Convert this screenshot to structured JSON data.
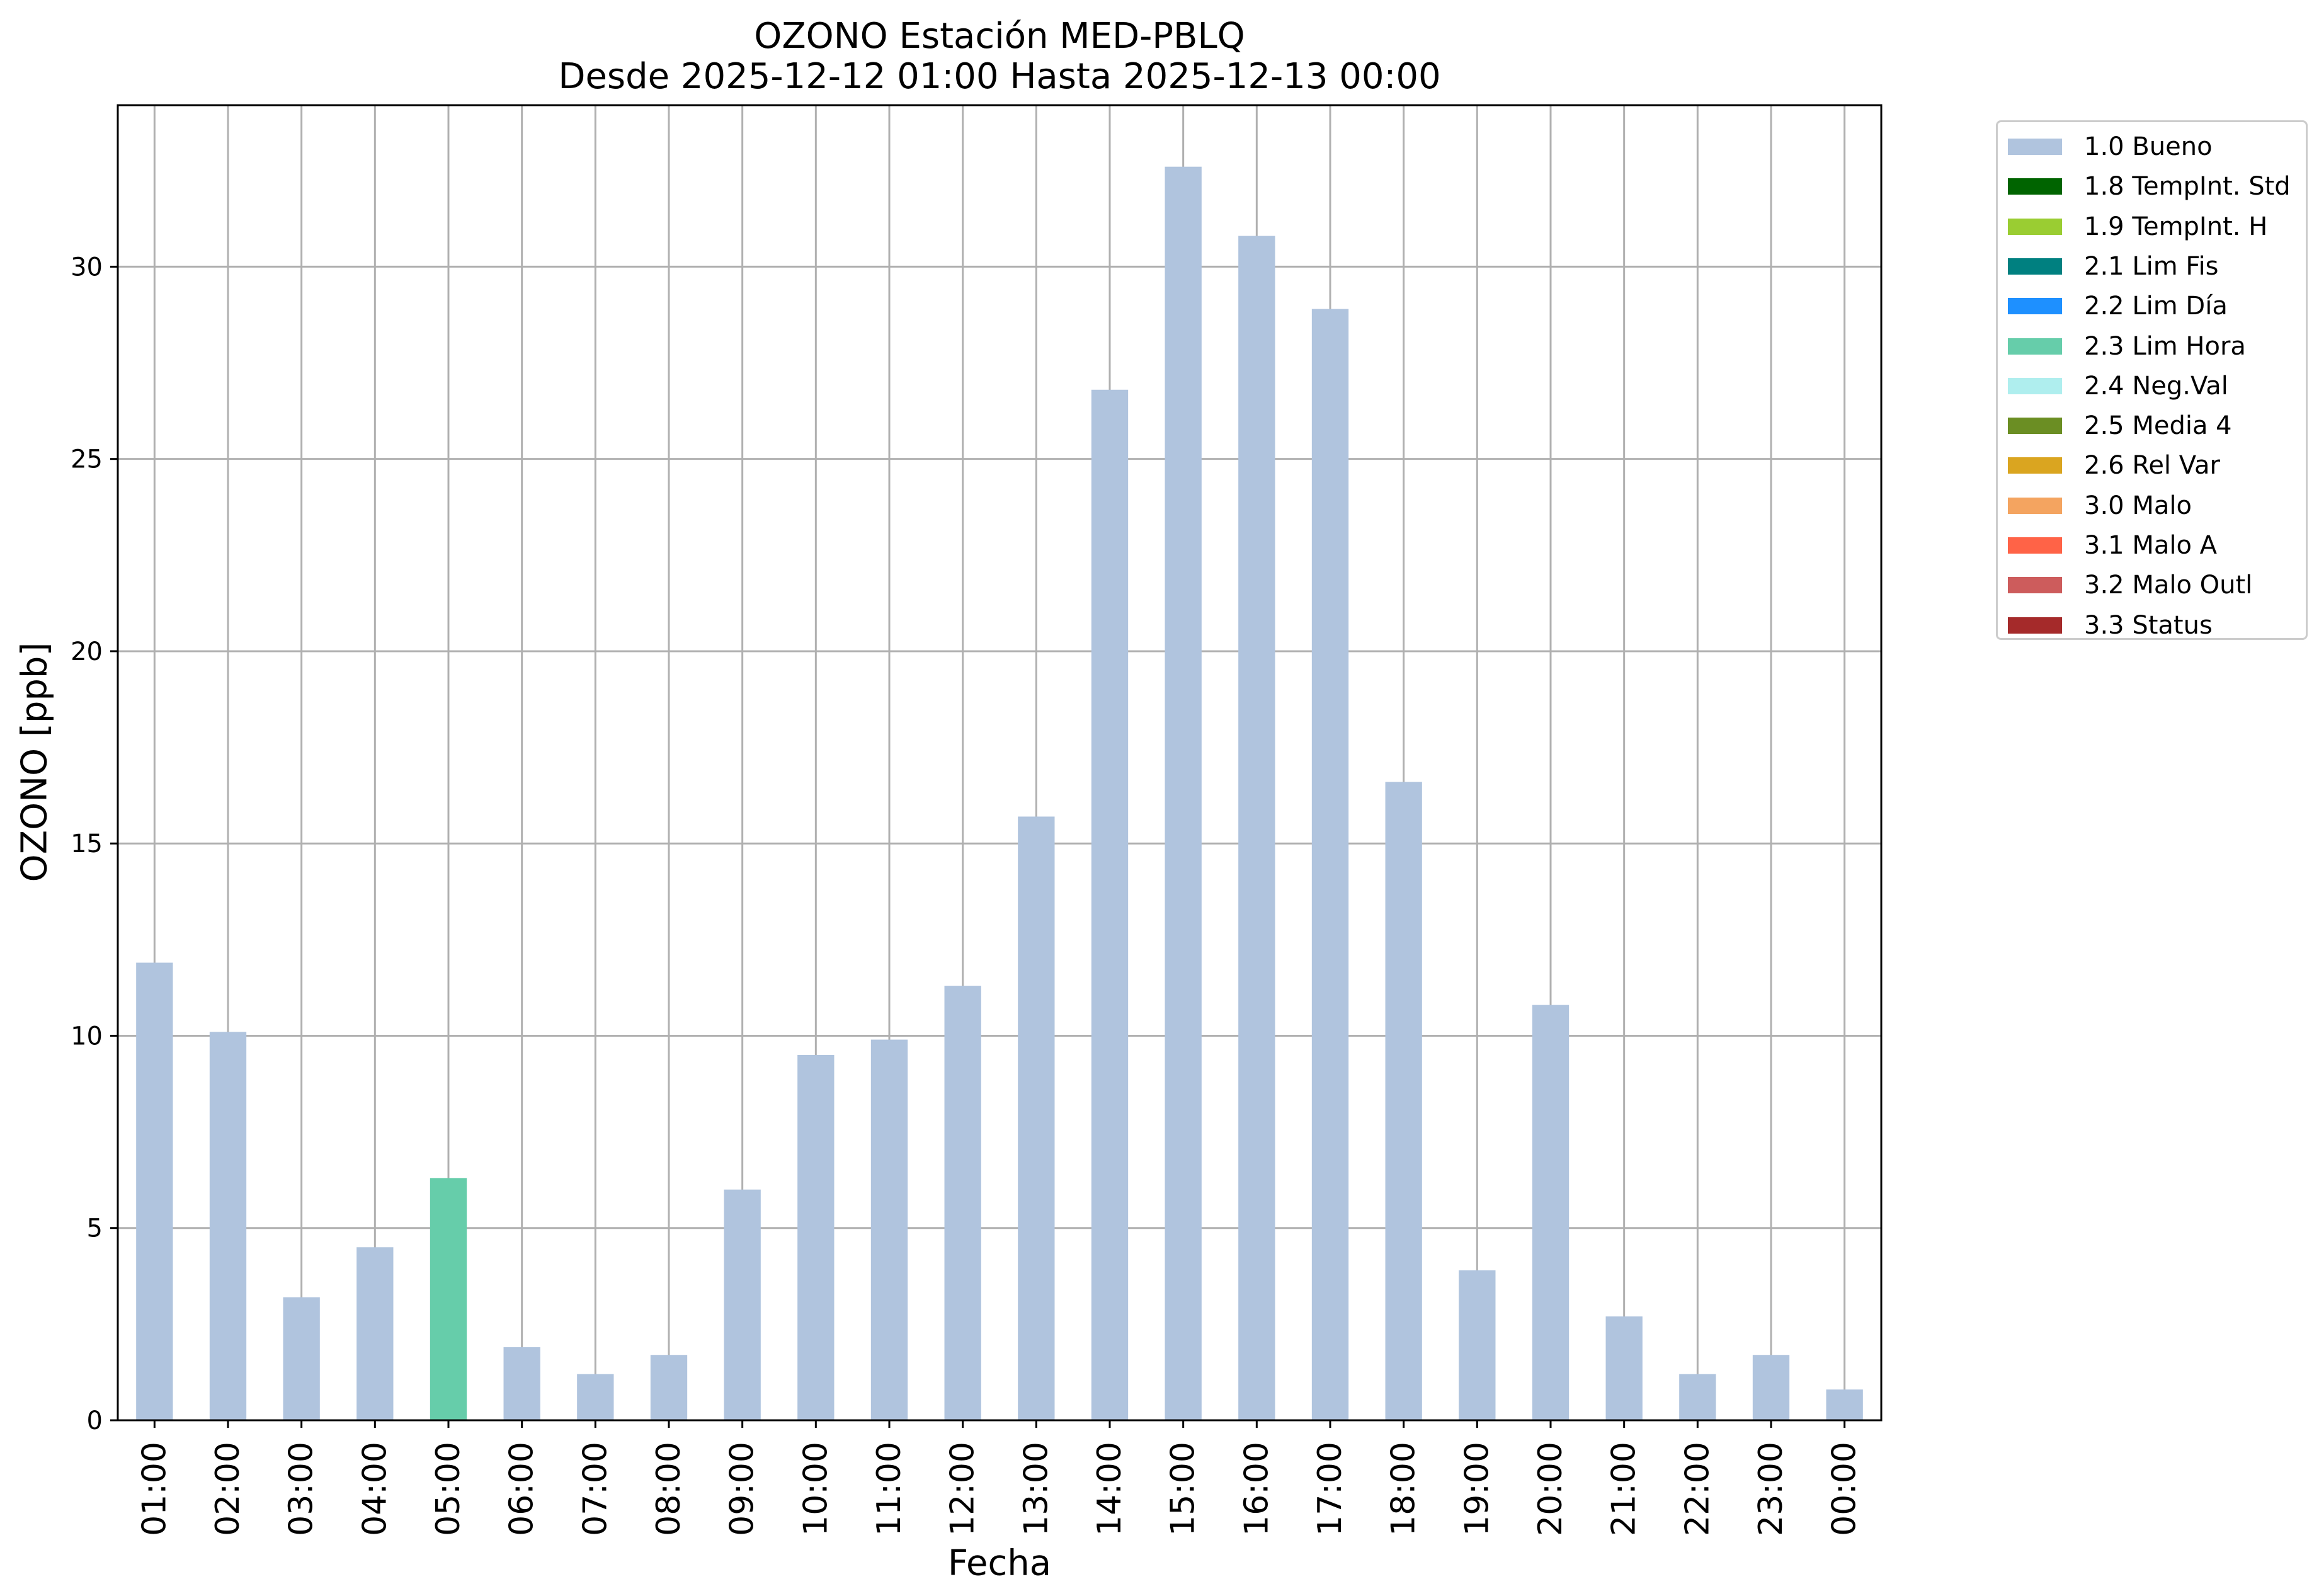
{
  "chart_data": {
    "type": "bar",
    "title": "OZONO Estación MED-PBLQ",
    "subtitle": "Desde 2025-12-12 01:00 Hasta 2025-12-13 00:00",
    "xlabel": "Fecha",
    "ylabel": "OZONO [ppb]",
    "ylim": [
      0,
      34.2
    ],
    "yticks": [
      0,
      5,
      10,
      15,
      20,
      25,
      30
    ],
    "grid": true,
    "legend_position": "outside-right",
    "categories": [
      "01:00",
      "02:00",
      "03:00",
      "04:00",
      "05:00",
      "06:00",
      "07:00",
      "08:00",
      "09:00",
      "10:00",
      "11:00",
      "12:00",
      "13:00",
      "14:00",
      "15:00",
      "16:00",
      "17:00",
      "18:00",
      "19:00",
      "20:00",
      "21:00",
      "22:00",
      "23:00",
      "00:00"
    ],
    "values": [
      11.9,
      10.1,
      3.2,
      4.5,
      6.3,
      1.9,
      1.2,
      1.7,
      6.0,
      9.5,
      9.9,
      11.3,
      15.7,
      26.8,
      32.6,
      30.8,
      28.9,
      16.6,
      3.9,
      10.8,
      2.7,
      1.2,
      1.7,
      0.8
    ],
    "flags": [
      "1.0 Bueno",
      "1.0 Bueno",
      "1.0 Bueno",
      "1.0 Bueno",
      "2.3 Lim Hora",
      "1.0 Bueno",
      "1.0 Bueno",
      "1.0 Bueno",
      "1.0 Bueno",
      "1.0 Bueno",
      "1.0 Bueno",
      "1.0 Bueno",
      "1.0 Bueno",
      "1.0 Bueno",
      "1.0 Bueno",
      "1.0 Bueno",
      "1.0 Bueno",
      "1.0 Bueno",
      "1.0 Bueno",
      "1.0 Bueno",
      "1.0 Bueno",
      "1.0 Bueno",
      "1.0 Bueno",
      "1.0 Bueno"
    ],
    "legend": [
      {
        "label": "1.0 Bueno",
        "color": "#b0c4de"
      },
      {
        "label": "1.8 TempInt. Std",
        "color": "#006400"
      },
      {
        "label": "1.9 TempInt. H",
        "color": "#9acd32"
      },
      {
        "label": "2.1 Lim Fis",
        "color": "#008080"
      },
      {
        "label": "2.2 Lim Día",
        "color": "#1e90ff"
      },
      {
        "label": "2.3 Lim Hora",
        "color": "#66cdaa"
      },
      {
        "label": "2.4 Neg.Val",
        "color": "#afeeee"
      },
      {
        "label": "2.5 Media 4",
        "color": "#6b8e23"
      },
      {
        "label": "2.6 Rel Var",
        "color": "#daa520"
      },
      {
        "label": "3.0 Malo",
        "color": "#f4a460"
      },
      {
        "label": "3.1 Malo A",
        "color": "#ff6347"
      },
      {
        "label": "3.2 Malo Outl",
        "color": "#cd5c5c"
      },
      {
        "label": "3.3 Status",
        "color": "#a52a2a"
      }
    ],
    "grid_color": "#b0b0b0"
  }
}
